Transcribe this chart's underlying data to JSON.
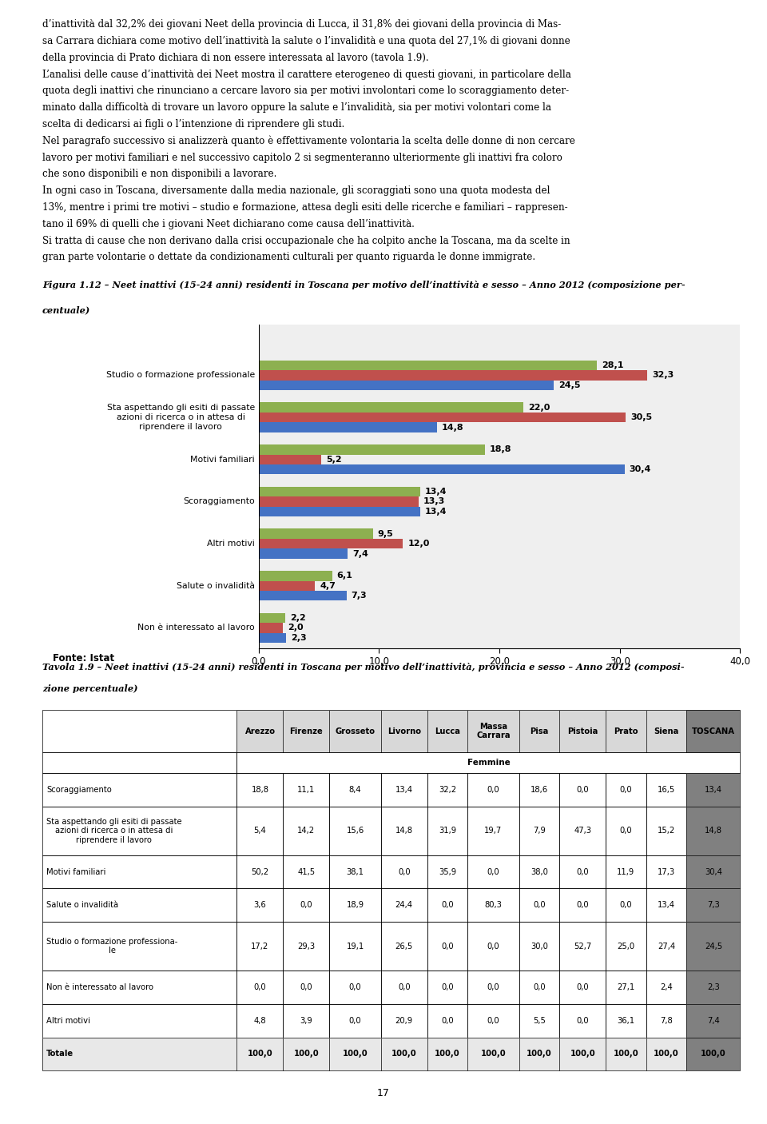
{
  "page_text_top": [
    "d’inattività dal 32,2% dei giovani Neet della provincia di Lucca, il 31,8% dei giovani della provincia di Mas-",
    "sa Carrara dichiara come motivo dell’inattività la salute o l’invalidità e una quota del 27,1% di giovani donne",
    "della provincia di Prato dichiara di non essere interessata al lavoro (tavola 1.9).",
    "L’analisi delle cause d’inattività dei Neet mostra il carattere eterogeneo di questi giovani, in particolare della",
    "quota degli inattivi che rinunciano a cercare lavoro sia per motivi involontari come lo scoraggiamento deter-",
    "minato dalla difficoltà di trovare un lavoro oppure la salute e l’invalidità, sia per motivi volontari come la",
    "scelta di dedicarsi ai figli o l’intenzione di riprendere gli studi.",
    "Nel paragrafo successivo si analizzerà quanto è effettivamente volontaria la scelta delle donne di non cercare",
    "lavoro per motivi familiari e nel successivo capitolo 2 si segmenteranno ulteriormente gli inattivi fra coloro",
    "che sono disponibili e non disponibili a lavorare.",
    "In ogni caso in Toscana, diversamente dalla media nazionale, gli scoraggiati sono una quota modesta del",
    "13%, mentre i primi tre motivi – studio e formazione, attesa degli esiti delle ricerche e familiari – rappresen-",
    "tano il 69% di quelli che i giovani Neet dichiarano come causa dell’inattività.",
    "Si tratta di cause che non derivano dalla crisi occupazionale che ha colpito anche la Toscana, ma da scelte in",
    "gran parte volontarie o dettate da condizionamenti culturali per quanto riguarda le donne immigrate."
  ],
  "figura_caption_bold": "Figura 1.12 – Neet inattivi (15-24 anni) residenti in Toscana per motivo dell’inattività e sesso – Anno 2012",
  "figura_caption_normal": " (composizione per-",
  "figura_caption_line2": "centuale)",
  "chart": {
    "categories": [
      "Studio o formazione professionale",
      "Sta aspettando gli esiti di passate\nazioni di ricerca o in attesa di\nriprendere il lavoro",
      "Motivi familiari",
      "Scoraggiamento",
      "Altri motivi",
      "Salute o invalidità",
      "Non è interessato al lavoro"
    ],
    "totale": [
      28.1,
      22.0,
      18.8,
      13.4,
      9.5,
      6.1,
      2.2
    ],
    "maschi": [
      32.3,
      30.5,
      5.2,
      13.3,
      12.0,
      4.7,
      2.0
    ],
    "femmine": [
      24.5,
      14.8,
      30.4,
      13.4,
      7.4,
      7.3,
      2.3
    ],
    "color_totale": "#8db050",
    "color_maschi": "#c0504d",
    "color_femmine": "#4472c4",
    "xlim": [
      0,
      40
    ],
    "xticks": [
      0.0,
      10.0,
      20.0,
      30.0,
      40.0
    ],
    "fonte": "Fonte: Istat"
  },
  "tavola_caption_bold": "Tavola 1.9 – Neet inattivi (15-24 anni) residenti in Toscana per motivo dell’inattività, provincia e sesso – Anno 2012",
  "tavola_caption_normal": " (composi-",
  "tavola_caption_line2": "zione percentuale)",
  "table": {
    "columns": [
      "",
      "Arezzo",
      "Firenze",
      "Grosseto",
      "Livorno",
      "Lucca",
      "Massa\nCarrara",
      "Pisa",
      "Pistoia",
      "Prato",
      "Siena",
      "TOSCANA"
    ],
    "subheader": "Femmine",
    "rows": [
      [
        "Scoraggiamento",
        "18,8",
        "11,1",
        "8,4",
        "13,4",
        "32,2",
        "0,0",
        "18,6",
        "0,0",
        "0,0",
        "16,5",
        "13,4"
      ],
      [
        "Sta aspettando gli esiti di passate\nazioni di ricerca o in attesa di\nriprendere il lavoro",
        "5,4",
        "14,2",
        "15,6",
        "14,8",
        "31,9",
        "19,7",
        "7,9",
        "47,3",
        "0,0",
        "15,2",
        "14,8"
      ],
      [
        "Motivi familiari",
        "50,2",
        "41,5",
        "38,1",
        "0,0",
        "35,9",
        "0,0",
        "38,0",
        "0,0",
        "11,9",
        "17,3",
        "30,4"
      ],
      [
        "Salute o invalidità",
        "3,6",
        "0,0",
        "18,9",
        "24,4",
        "0,0",
        "80,3",
        "0,0",
        "0,0",
        "0,0",
        "13,4",
        "7,3"
      ],
      [
        "Studio o formazione professiona-\nle",
        "17,2",
        "29,3",
        "19,1",
        "26,5",
        "0,0",
        "0,0",
        "30,0",
        "52,7",
        "25,0",
        "27,4",
        "24,5"
      ],
      [
        "Non è interessato al lavoro",
        "0,0",
        "0,0",
        "0,0",
        "0,0",
        "0,0",
        "0,0",
        "0,0",
        "0,0",
        "27,1",
        "2,4",
        "2,3"
      ],
      [
        "Altri motivi",
        "4,8",
        "3,9",
        "0,0",
        "20,9",
        "0,0",
        "0,0",
        "5,5",
        "0,0",
        "36,1",
        "7,8",
        "7,4"
      ],
      [
        "Totale",
        "100,0",
        "100,0",
        "100,0",
        "100,0",
        "100,0",
        "100,0",
        "100,0",
        "100,0",
        "100,0",
        "100,0",
        "100,0"
      ]
    ]
  },
  "page_number": "17"
}
